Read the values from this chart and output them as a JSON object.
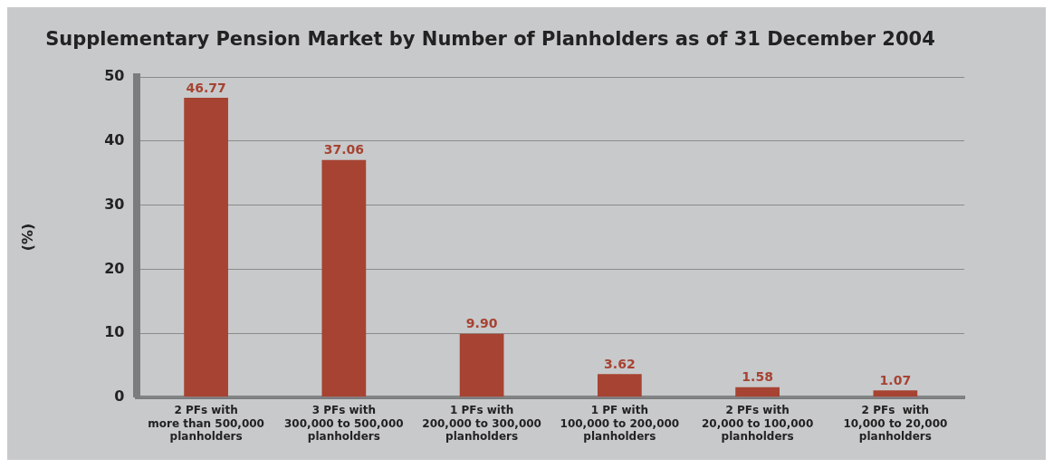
{
  "chart_data": {
    "type": "bar",
    "title": "Supplementary Pension Market by Number of Planholders as of 31 December 2004",
    "ylabel": "(%)",
    "categories": [
      "2 PFs with\nmore than 500,000\nplanholders",
      "3 PFs with\n300,000 to 500,000\nplanholders",
      "1 PFs with\n200,000 to 300,000\nplanholders",
      "1 PF with\n100,000 to 200,000\nplanholders",
      "2 PFs with\n20,000 to 100,000\nplanholders",
      "2 PFs  with\n10,000 to 20,000\nplanholders"
    ],
    "values": [
      46.77,
      37.06,
      9.9,
      3.62,
      1.58,
      1.07
    ],
    "value_labels": [
      "46.77",
      "37.06",
      "9.90",
      "3.62",
      "1.58",
      "1.07"
    ],
    "color": "#a64332",
    "ylim": [
      0,
      50
    ],
    "yticks": [
      0,
      10,
      20,
      30,
      40,
      50
    ],
    "grid": "y"
  }
}
